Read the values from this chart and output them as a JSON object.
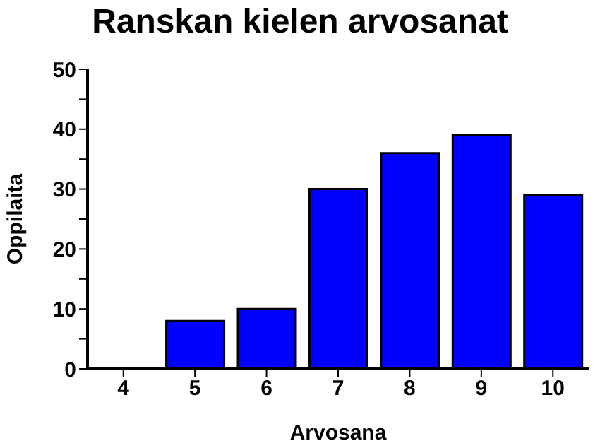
{
  "chart_data": {
    "type": "bar",
    "title": "Ranskan kielen arvosanat",
    "xlabel": "Arvosana",
    "ylabel": "Oppilaita",
    "categories": [
      "4",
      "5",
      "6",
      "7",
      "8",
      "9",
      "10"
    ],
    "values": [
      0,
      8,
      10,
      30,
      36,
      39,
      29
    ],
    "color": "#0000ff",
    "ylim": [
      0,
      50
    ],
    "yticks": [
      0,
      {
        "value": 5,
        "label": null
      },
      10,
      {
        "value": 15,
        "label": null
      },
      20,
      {
        "value": 25,
        "label": null
      },
      30,
      {
        "value": 35,
        "label": null
      },
      40,
      {
        "value": 45,
        "label": null
      },
      50
    ],
    "grid": false,
    "legend": false
  }
}
